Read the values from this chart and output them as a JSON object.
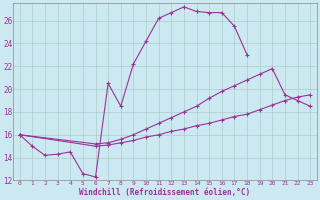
{
  "xlabel": "Windchill (Refroidissement éolien,°C)",
  "background_color": "#cce8f0",
  "grid_color": "#aacccc",
  "line_color": "#993399",
  "xlim": [
    -0.5,
    23.5
  ],
  "ylim": [
    12,
    27.5
  ],
  "xticks": [
    0,
    1,
    2,
    3,
    4,
    5,
    6,
    7,
    8,
    9,
    10,
    11,
    12,
    13,
    14,
    15,
    16,
    17,
    18,
    19,
    20,
    21,
    22,
    23
  ],
  "yticks": [
    12,
    14,
    16,
    18,
    20,
    22,
    24,
    26
  ],
  "line1_x": [
    0,
    1,
    2,
    3,
    4,
    5,
    6,
    7,
    8,
    9,
    10,
    11,
    12,
    13,
    14,
    15,
    16,
    17,
    18
  ],
  "line1_y": [
    16.0,
    15.0,
    14.2,
    14.3,
    14.5,
    12.6,
    12.3,
    20.5,
    18.5,
    22.2,
    24.2,
    26.2,
    26.7,
    27.2,
    26.8,
    26.7,
    26.7,
    25.5,
    23.0
  ],
  "line2_x": [
    0,
    6,
    7,
    8,
    9,
    10,
    11,
    12,
    13,
    14,
    15,
    16,
    17,
    18,
    19,
    20,
    21,
    22,
    23
  ],
  "line2_y": [
    16.0,
    15.2,
    15.3,
    15.6,
    16.0,
    16.5,
    17.0,
    17.5,
    18.0,
    18.5,
    19.2,
    19.8,
    20.3,
    20.8,
    21.3,
    21.8,
    19.5,
    19.0,
    18.5
  ],
  "line3_x": [
    0,
    6,
    7,
    8,
    9,
    10,
    11,
    12,
    13,
    14,
    15,
    16,
    17,
    18,
    19,
    20,
    21,
    22,
    23
  ],
  "line3_y": [
    16.0,
    15.0,
    15.1,
    15.3,
    15.5,
    15.8,
    16.0,
    16.3,
    16.5,
    16.8,
    17.0,
    17.3,
    17.6,
    17.8,
    18.2,
    18.6,
    19.0,
    19.3,
    19.5
  ]
}
